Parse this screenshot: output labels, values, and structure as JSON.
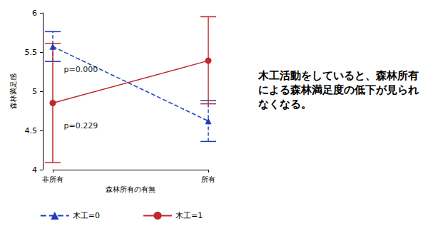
{
  "chart_data": {
    "type": "line",
    "x_label": "森林所有の有無",
    "y_label": "森林満足感",
    "categories": [
      "非所有",
      "所有"
    ],
    "ylim": [
      4,
      6
    ],
    "yticks": [
      4,
      4.5,
      5,
      5.5,
      6
    ],
    "grid": false,
    "legend": "bottom",
    "series": [
      {
        "name": "木工=0",
        "color": "#1a3dbd",
        "line_style": "dashed",
        "marker": "triangle",
        "values": [
          5.57,
          4.62
        ],
        "ci_low": [
          5.38,
          4.36
        ],
        "ci_high": [
          5.76,
          4.88
        ]
      },
      {
        "name": "木工=1",
        "color": "#c0282d",
        "line_style": "solid",
        "marker": "circle",
        "values": [
          4.85,
          5.39
        ],
        "ci_low": [
          4.09,
          4.84
        ],
        "ci_high": [
          5.61,
          5.95
        ]
      }
    ],
    "annotations": [
      {
        "text": "p=0.000",
        "series": "木工=0",
        "category": "非所有"
      },
      {
        "text": "p=0.229",
        "series": "木工=1",
        "category": "非所有"
      }
    ],
    "side_text": "木工活動をしていると、森林所有による森林満足度の低下が見られなくなる。"
  }
}
